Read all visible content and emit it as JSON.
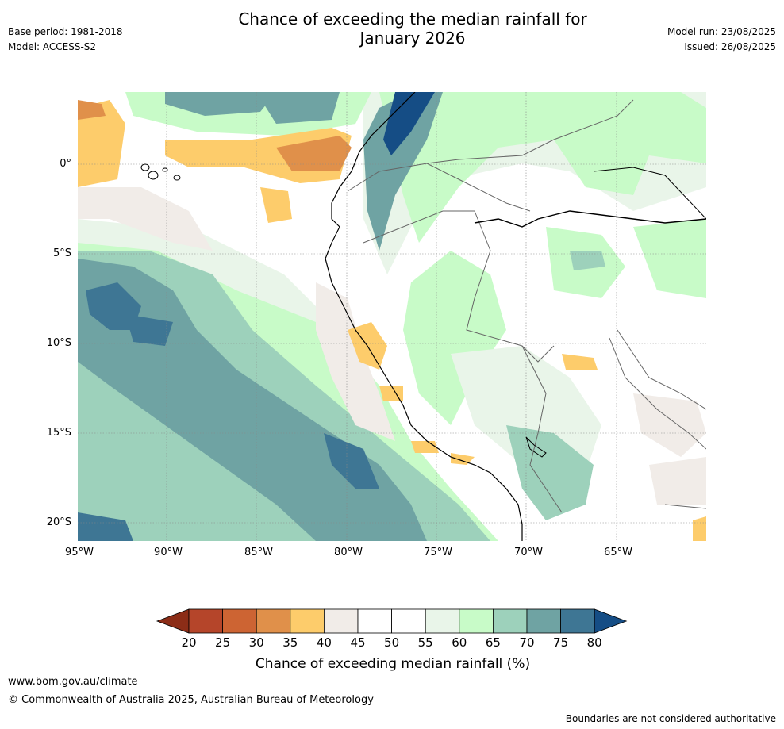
{
  "header": {
    "title_line1": "Chance of exceeding the median rainfall for",
    "title_line2": "January 2026",
    "base_period": "Base period: 1981-2018",
    "model": "Model: ACCESS-S2",
    "model_run": "Model run: 23/08/2025",
    "issued": "Issued: 26/08/2025"
  },
  "map": {
    "latitude_labels": [
      "0°",
      "5°S",
      "10°S",
      "15°S",
      "20°S"
    ],
    "longitude_labels": [
      "95°W",
      "90°W",
      "85°W",
      "80°W",
      "75°W",
      "70°W",
      "65°W"
    ],
    "lon_range": [
      -95,
      -60
    ],
    "lat_range": [
      -21,
      4
    ]
  },
  "colorbar": {
    "ticks": [
      "20",
      "25",
      "30",
      "35",
      "40",
      "45",
      "50",
      "55",
      "60",
      "65",
      "70",
      "75",
      "80"
    ],
    "colors": [
      "#8c2d17",
      "#b5452a",
      "#cd6433",
      "#e0904a",
      "#fdcc6b",
      "#f1ece8",
      "#ffffff",
      "#ffffff",
      "#e9f5e9",
      "#c8fbc8",
      "#9dd1bb",
      "#6fa3a3",
      "#3e7694",
      "#154d85"
    ],
    "title": "Chance of exceeding median rainfall (%)"
  },
  "footer": {
    "website": "www.bom.gov.au/climate",
    "copyright": "© Commonwealth of Australia 2025, Australian Bureau of Meteorology",
    "disclaimer": "Boundaries are not considered authoritative"
  }
}
